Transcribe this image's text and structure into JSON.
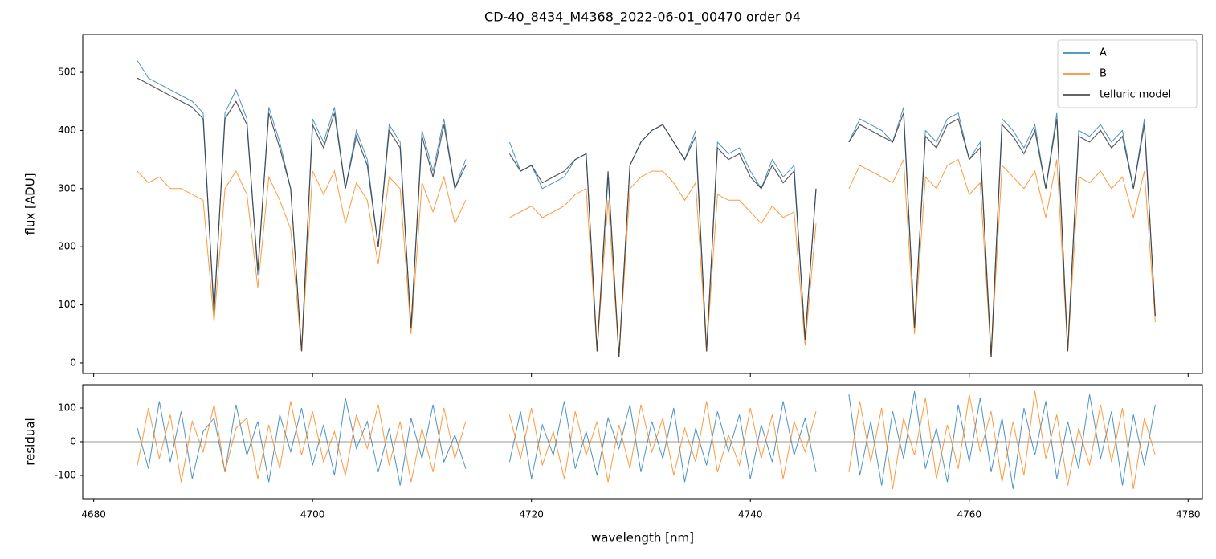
{
  "chart_data": [
    {
      "type": "line",
      "title": "CD-40_8434_M4368_2022-06-01_00470  order 04",
      "ylabel": "flux [ADU]",
      "xlim": [
        4679,
        4781.3
      ],
      "ylim": [
        -18,
        565
      ],
      "xticks": [
        4680,
        4700,
        4720,
        4740,
        4760,
        4780
      ],
      "yticks": [
        0,
        100,
        200,
        300,
        400,
        500
      ],
      "legend": "upper right",
      "x": [
        4684,
        4685,
        4686,
        4687,
        4688,
        4689,
        4690,
        4691,
        4692,
        4693,
        4694,
        4695,
        4696,
        4697,
        4698,
        4699,
        4700,
        4701,
        4702,
        4703,
        4704,
        4705,
        4706,
        4707,
        4708,
        4709,
        4710,
        4711,
        4712,
        4713,
        4714,
        4715,
        4716,
        4717,
        4718,
        4719,
        4720,
        4721,
        4722,
        4723,
        4724,
        4725,
        4726,
        4727,
        4728,
        4729,
        4730,
        4731,
        4732,
        4733,
        4734,
        4735,
        4736,
        4737,
        4738,
        4739,
        4740,
        4741,
        4742,
        4743,
        4744,
        4745,
        4746,
        4747,
        4748,
        4749,
        4750,
        4751,
        4752,
        4753,
        4754,
        4755,
        4756,
        4757,
        4758,
        4759,
        4760,
        4761,
        4762,
        4763,
        4764,
        4765,
        4766,
        4767,
        4768,
        4769,
        4770,
        4771,
        4772,
        4773,
        4774,
        4775,
        4776,
        4777
      ],
      "series": [
        {
          "name": "A",
          "color": "#1f77b4",
          "values": [
            520,
            490,
            480,
            470,
            460,
            450,
            430,
            80,
            430,
            470,
            420,
            150,
            440,
            380,
            300,
            20,
            420,
            380,
            440,
            300,
            400,
            350,
            200,
            410,
            380,
            60,
            400,
            330,
            420,
            300,
            350,
            null,
            null,
            null,
            380,
            330,
            340,
            300,
            310,
            320,
            350,
            360,
            20,
            320,
            10,
            340,
            380,
            400,
            410,
            380,
            350,
            400,
            20,
            380,
            360,
            370,
            330,
            300,
            350,
            320,
            340,
            40,
            300,
            null,
            null,
            380,
            420,
            410,
            400,
            380,
            440,
            60,
            400,
            380,
            420,
            430,
            350,
            380,
            10,
            420,
            400,
            370,
            410,
            300,
            430,
            20,
            400,
            390,
            410,
            380,
            400,
            300,
            420,
            80
          ]
        },
        {
          "name": "B",
          "color": "#ff7f0e",
          "values": [
            330,
            310,
            320,
            300,
            300,
            290,
            280,
            70,
            300,
            330,
            290,
            130,
            320,
            280,
            230,
            20,
            330,
            290,
            330,
            240,
            310,
            280,
            170,
            320,
            300,
            50,
            310,
            260,
            320,
            240,
            280,
            null,
            null,
            null,
            250,
            260,
            270,
            250,
            260,
            270,
            290,
            300,
            20,
            280,
            10,
            300,
            320,
            330,
            330,
            310,
            280,
            310,
            20,
            290,
            280,
            280,
            260,
            240,
            270,
            250,
            260,
            30,
            240,
            null,
            null,
            300,
            340,
            330,
            320,
            310,
            350,
            50,
            320,
            300,
            340,
            350,
            290,
            310,
            10,
            340,
            320,
            300,
            330,
            250,
            350,
            20,
            320,
            310,
            330,
            300,
            320,
            250,
            330,
            70
          ]
        },
        {
          "name": "telluric model",
          "color": "#333333",
          "values": [
            490,
            480,
            470,
            460,
            450,
            440,
            420,
            90,
            420,
            450,
            410,
            160,
            430,
            370,
            300,
            20,
            410,
            370,
            430,
            300,
            390,
            340,
            200,
            400,
            370,
            60,
            390,
            320,
            410,
            300,
            340,
            null,
            null,
            null,
            360,
            330,
            340,
            310,
            320,
            330,
            350,
            360,
            20,
            330,
            10,
            340,
            380,
            400,
            410,
            380,
            350,
            390,
            20,
            370,
            350,
            360,
            320,
            300,
            340,
            310,
            330,
            40,
            300,
            null,
            null,
            380,
            410,
            400,
            390,
            380,
            430,
            60,
            390,
            370,
            410,
            420,
            350,
            370,
            10,
            410,
            390,
            360,
            400,
            300,
            420,
            20,
            390,
            380,
            400,
            370,
            390,
            300,
            410,
            80
          ]
        }
      ]
    },
    {
      "type": "line",
      "ylabel": "residual",
      "xlabel": "wavelength [nm]",
      "xlim": [
        4679,
        4781.3
      ],
      "ylim": [
        -169,
        169
      ],
      "hline": 0,
      "xticks": [
        4680,
        4700,
        4720,
        4740,
        4760,
        4780
      ],
      "yticks": [
        -100,
        0,
        100
      ],
      "x": [
        4684,
        4685,
        4686,
        4687,
        4688,
        4689,
        4690,
        4691,
        4692,
        4693,
        4694,
        4695,
        4696,
        4697,
        4698,
        4699,
        4700,
        4701,
        4702,
        4703,
        4704,
        4705,
        4706,
        4707,
        4708,
        4709,
        4710,
        4711,
        4712,
        4713,
        4714,
        4715,
        4716,
        4717,
        4718,
        4719,
        4720,
        4721,
        4722,
        4723,
        4724,
        4725,
        4726,
        4727,
        4728,
        4729,
        4730,
        4731,
        4732,
        4733,
        4734,
        4735,
        4736,
        4737,
        4738,
        4739,
        4740,
        4741,
        4742,
        4743,
        4744,
        4745,
        4746,
        4747,
        4748,
        4749,
        4750,
        4751,
        4752,
        4753,
        4754,
        4755,
        4756,
        4757,
        4758,
        4759,
        4760,
        4761,
        4762,
        4763,
        4764,
        4765,
        4766,
        4767,
        4768,
        4769,
        4770,
        4771,
        4772,
        4773,
        4774,
        4775,
        4776,
        4777
      ],
      "series": [
        {
          "color": "#1f77b4",
          "values": [
            40,
            -80,
            120,
            -60,
            90,
            -110,
            30,
            70,
            -90,
            110,
            -40,
            60,
            -120,
            80,
            -30,
            100,
            -70,
            50,
            -100,
            130,
            -20,
            60,
            -90,
            40,
            -130,
            70,
            -50,
            110,
            -60,
            20,
            -80,
            null,
            null,
            null,
            -60,
            90,
            -110,
            50,
            -40,
            120,
            -80,
            30,
            -100,
            70,
            -20,
            110,
            -90,
            60,
            -50,
            100,
            -120,
            40,
            -70,
            90,
            -30,
            80,
            -110,
            50,
            -60,
            120,
            -40,
            70,
            -90,
            null,
            null,
            140,
            -100,
            60,
            -130,
            90,
            -50,
            150,
            -80,
            40,
            -120,
            110,
            -60,
            130,
            -90,
            70,
            -140,
            100,
            -40,
            120,
            -110,
            60,
            -80,
            140,
            -50,
            90,
            -130,
            80,
            -70,
            110
          ]
        },
        {
          "color": "#ff7f0e",
          "values": [
            -70,
            100,
            -50,
            80,
            -120,
            60,
            -30,
            110,
            -90,
            40,
            70,
            -110,
            50,
            -80,
            120,
            -40,
            90,
            -60,
            30,
            -100,
            80,
            -20,
            110,
            -70,
            60,
            -120,
            40,
            -90,
            100,
            -50,
            60,
            null,
            null,
            null,
            80,
            -50,
            100,
            -70,
            30,
            -110,
            90,
            -40,
            60,
            -120,
            50,
            -80,
            110,
            -30,
            70,
            -100,
            40,
            -60,
            120,
            -90,
            20,
            -70,
            100,
            -50,
            80,
            -110,
            60,
            -30,
            90,
            null,
            null,
            -90,
            120,
            -60,
            100,
            -140,
            70,
            -40,
            130,
            -110,
            50,
            -80,
            140,
            -30,
            90,
            -120,
            60,
            -100,
            150,
            -50,
            80,
            -130,
            40,
            -70,
            110,
            -60,
            100,
            -140,
            70,
            -40
          ]
        }
      ]
    }
  ]
}
